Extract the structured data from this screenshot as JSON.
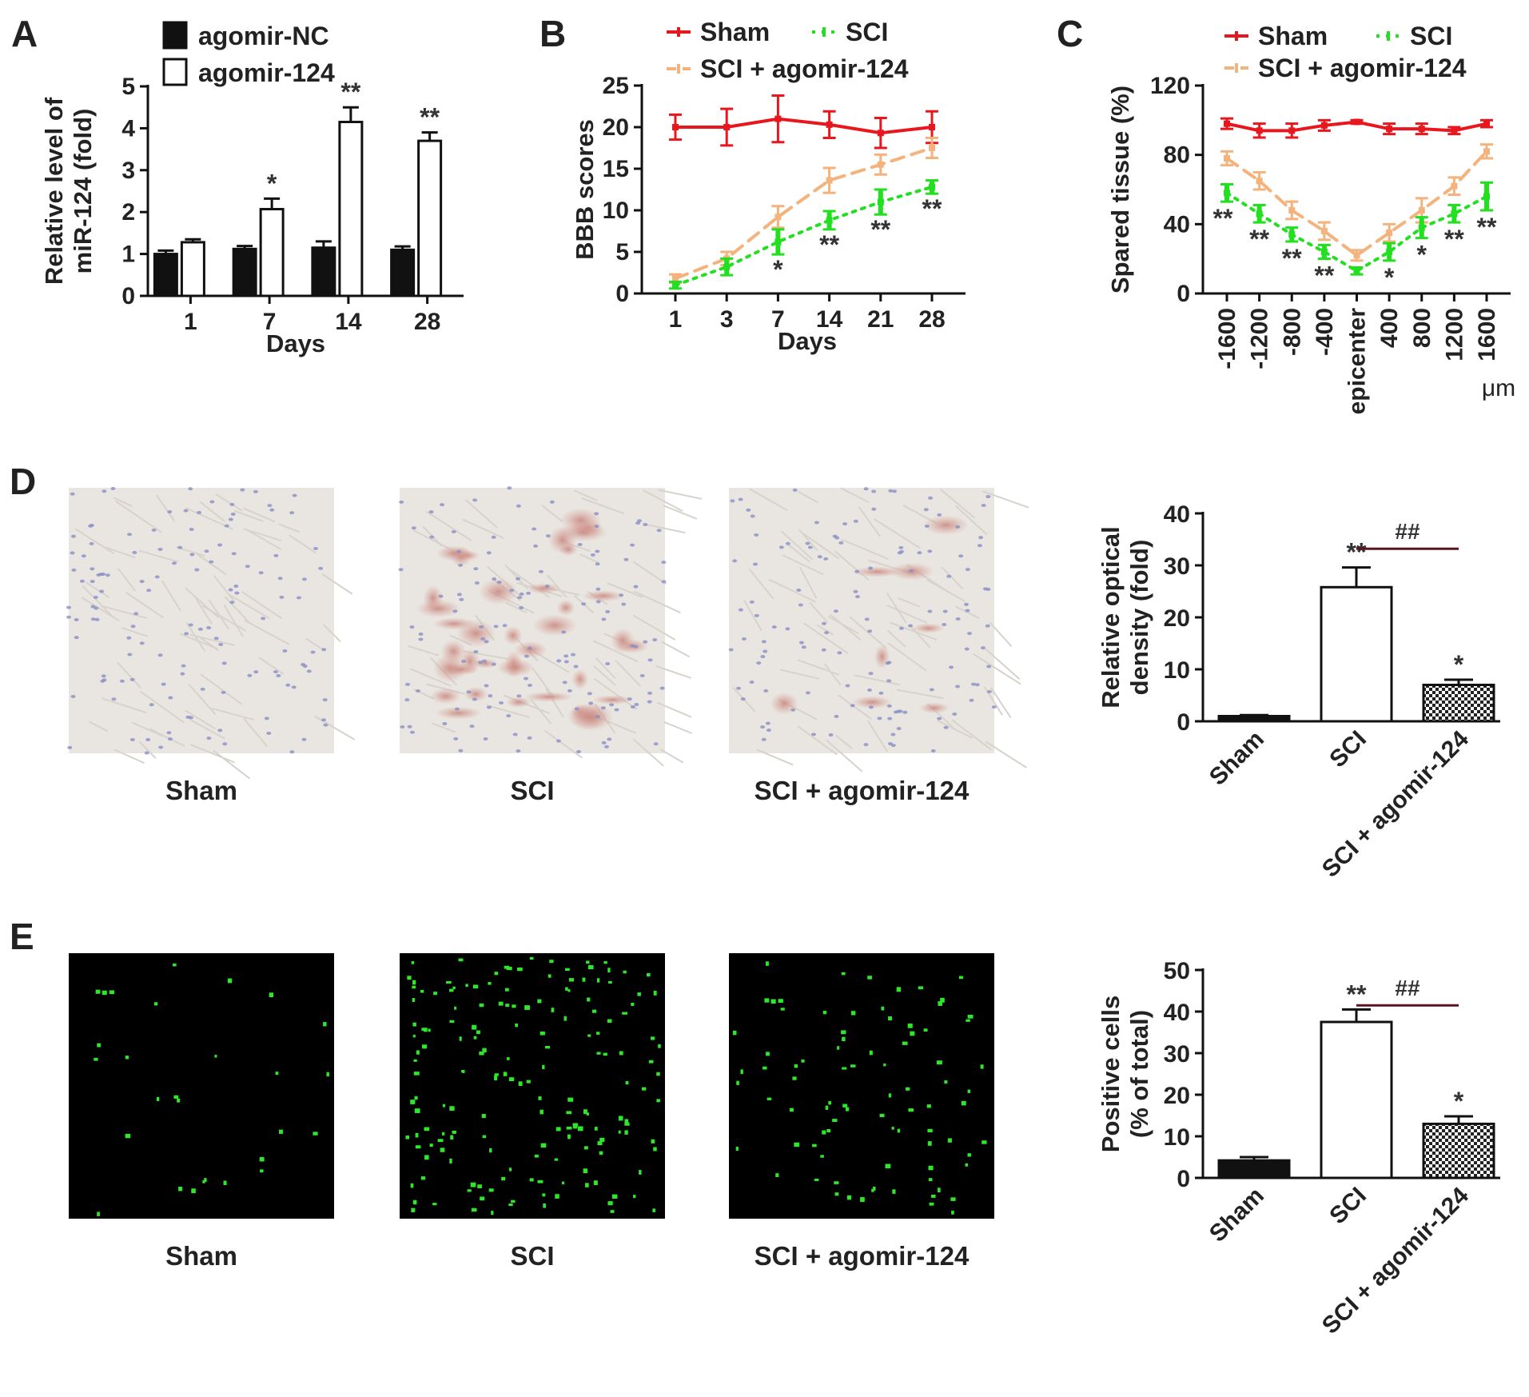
{
  "colors": {
    "sham": "#e8171e",
    "sci": "#22e020",
    "agomir": "#f4b27c",
    "black": "#111111",
    "ihc_bg": "#e9e6e1",
    "fluor_bg": "#000000",
    "fluor_dot": "#2ee62a"
  },
  "captions": {
    "D": [
      "Sham",
      "SCI",
      "SCI + agomir-124"
    ],
    "E": [
      "Sham",
      "SCI",
      "SCI + agomir-124"
    ]
  },
  "chart_data": [
    {
      "id": "A",
      "type": "bar",
      "panel_label": "A",
      "categories": [
        "1",
        "7",
        "14",
        "28"
      ],
      "series": [
        {
          "name": "agomir-NC",
          "values": [
            1.0,
            1.12,
            1.15,
            1.1
          ],
          "errors": [
            0.08,
            0.07,
            0.15,
            0.08
          ],
          "fill": "black"
        },
        {
          "name": "agomir-124",
          "values": [
            1.28,
            2.07,
            4.15,
            3.7
          ],
          "errors": [
            0.07,
            0.25,
            0.35,
            0.2
          ],
          "fill": "white"
        }
      ],
      "significance": [
        [
          "",
          ""
        ],
        [
          "",
          "*"
        ],
        [
          "",
          "**"
        ],
        [
          "",
          "**"
        ]
      ],
      "xlabel": "Days",
      "ylabel": [
        "Relative level of",
        "miR-124 (fold)"
      ],
      "ylim": [
        0,
        5
      ],
      "yticks": [
        "0",
        "1",
        "2",
        "3",
        "4",
        "5"
      ],
      "grid": false,
      "legend": "top-left"
    },
    {
      "id": "B",
      "type": "line",
      "panel_label": "B",
      "x": [
        "1",
        "3",
        "7",
        "14",
        "21",
        "28"
      ],
      "series": [
        {
          "name": "Sham",
          "values": [
            20,
            20,
            21,
            20.3,
            19.3,
            20
          ],
          "errors": [
            1.5,
            2.2,
            2.8,
            1.6,
            1.8,
            1.9
          ],
          "style": "solid",
          "color": "sham"
        },
        {
          "name": "SCI",
          "values": [
            1.0,
            3.2,
            6.2,
            8.8,
            11.0,
            12.8
          ],
          "errors": [
            0.4,
            1.0,
            1.5,
            1.1,
            1.5,
            0.8
          ],
          "style": "dotted",
          "color": "sci"
        },
        {
          "name": "SCI + agomir-124",
          "values": [
            1.8,
            4.2,
            9.2,
            13.6,
            15.5,
            17.5
          ],
          "errors": [
            0.5,
            0.8,
            1.3,
            1.5,
            1.2,
            1.2
          ],
          "style": "dashed",
          "color": "agomir"
        }
      ],
      "significance": [
        "",
        "",
        "*",
        "**",
        "**",
        "**"
      ],
      "xlabel": "Days",
      "ylabel": "BBB scores",
      "ylim": [
        0,
        25
      ],
      "yticks": [
        "0",
        "5",
        "10",
        "15",
        "20",
        "25"
      ],
      "grid": false,
      "legend": "top"
    },
    {
      "id": "C",
      "type": "line",
      "panel_label": "C",
      "x": [
        "-1600",
        "-1200",
        "-800",
        "-400",
        "epicenter",
        "400",
        "800",
        "1200",
        "1600"
      ],
      "x_unit": "μm",
      "series": [
        {
          "name": "Sham",
          "values": [
            98,
            94,
            94,
            97,
            99,
            95,
            95,
            94,
            98
          ],
          "errors": [
            3,
            4,
            4,
            3,
            1,
            3,
            3,
            2,
            2
          ],
          "style": "solid",
          "color": "sham"
        },
        {
          "name": "SCI",
          "values": [
            58,
            46,
            34,
            24,
            13,
            24,
            38,
            46,
            56
          ],
          "errors": [
            5,
            5,
            4,
            4,
            2,
            5,
            6,
            5,
            8
          ],
          "style": "dotted",
          "color": "sci"
        },
        {
          "name": "SCI + agomir-124",
          "values": [
            78,
            65,
            48,
            36,
            22,
            35,
            48,
            62,
            82
          ],
          "errors": [
            4,
            5,
            5,
            5,
            3,
            5,
            7,
            5,
            4
          ],
          "style": "dashed",
          "color": "agomir"
        }
      ],
      "significance": [
        "**",
        "**",
        "**",
        "**",
        "",
        "*",
        "*",
        "**",
        "**"
      ],
      "xlabel": "",
      "ylabel": "Spared tissue (%)",
      "ylim": [
        0,
        120
      ],
      "yticks": [
        "0",
        "40",
        "80",
        "120"
      ],
      "grid": false,
      "legend": "top"
    },
    {
      "id": "D",
      "type": "bar",
      "panel_label": "D",
      "categories": [
        "Sham",
        "SCI",
        "SCI + agomir-124"
      ],
      "values": [
        1.0,
        25.8,
        7.0
      ],
      "errors": [
        0.2,
        3.8,
        1.0
      ],
      "fills": [
        "black",
        "white",
        "checker"
      ],
      "significance": [
        "",
        "**",
        "*"
      ],
      "comparison": {
        "from": 1,
        "to": 2,
        "label": "##"
      },
      "xlabel": "",
      "ylabel": [
        "Relative optical",
        "density (fold)"
      ],
      "ylim": [
        0,
        40
      ],
      "yticks": [
        "0",
        "10",
        "20",
        "30",
        "40"
      ],
      "grid": false
    },
    {
      "id": "E",
      "type": "bar",
      "panel_label": "E",
      "categories": [
        "Sham",
        "SCI",
        "SCI + agomir-124"
      ],
      "values": [
        4.2,
        37.5,
        13.0
      ],
      "errors": [
        0.8,
        3.0,
        1.8
      ],
      "fills": [
        "black",
        "white",
        "checker"
      ],
      "significance": [
        "",
        "**",
        "*"
      ],
      "comparison": {
        "from": 1,
        "to": 2,
        "label": "##"
      },
      "xlabel": "",
      "ylabel": [
        "Positive cells",
        "(% of total)"
      ],
      "ylim": [
        0,
        50
      ],
      "yticks": [
        "0",
        "10",
        "20",
        "30",
        "40",
        "50"
      ],
      "grid": false
    }
  ]
}
